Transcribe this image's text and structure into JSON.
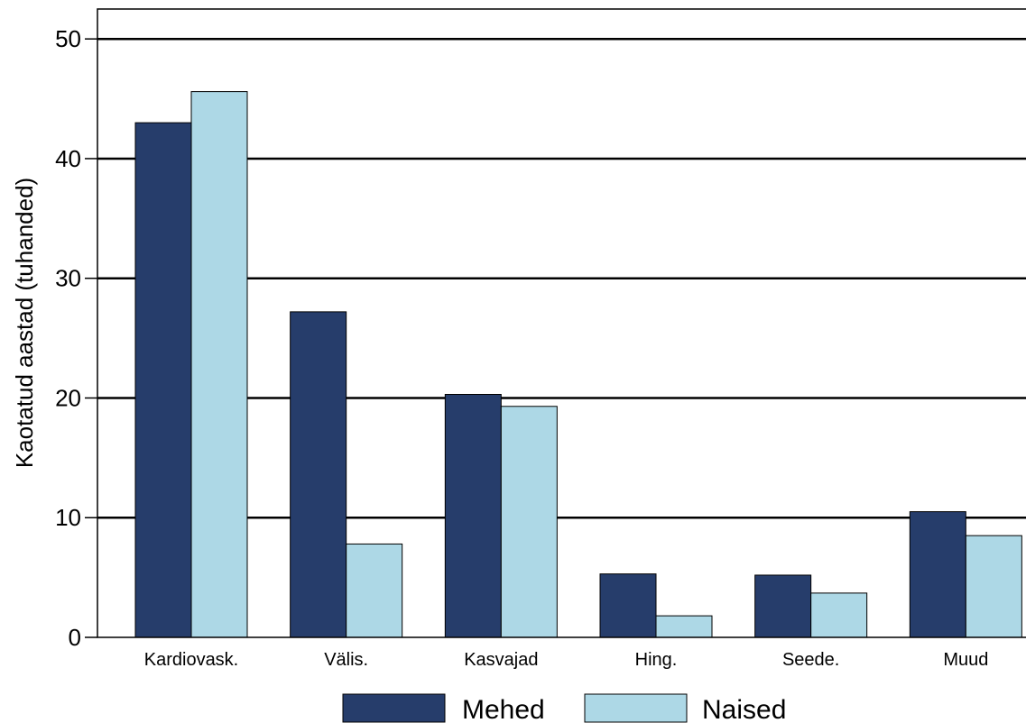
{
  "chart_data": {
    "type": "bar",
    "ylabel": "Kaotatud aastad (tuhanded)",
    "xlabel": "",
    "ylim": [
      0,
      52.5
    ],
    "yticks": [
      0,
      10,
      20,
      30,
      40,
      50
    ],
    "grid": true,
    "legend_position": "bottom",
    "categories": [
      "Kardiovask.",
      "Välis.",
      "Kasvajad",
      "Hing.",
      "Seede.",
      "Muud"
    ],
    "series": [
      {
        "name": "Mehed",
        "color": "#263d6b",
        "values": [
          43.0,
          27.2,
          20.3,
          5.3,
          5.2,
          10.5
        ]
      },
      {
        "name": "Naised",
        "color": "#add8e6",
        "values": [
          45.6,
          7.8,
          19.3,
          1.8,
          3.7,
          8.5
        ]
      }
    ]
  }
}
